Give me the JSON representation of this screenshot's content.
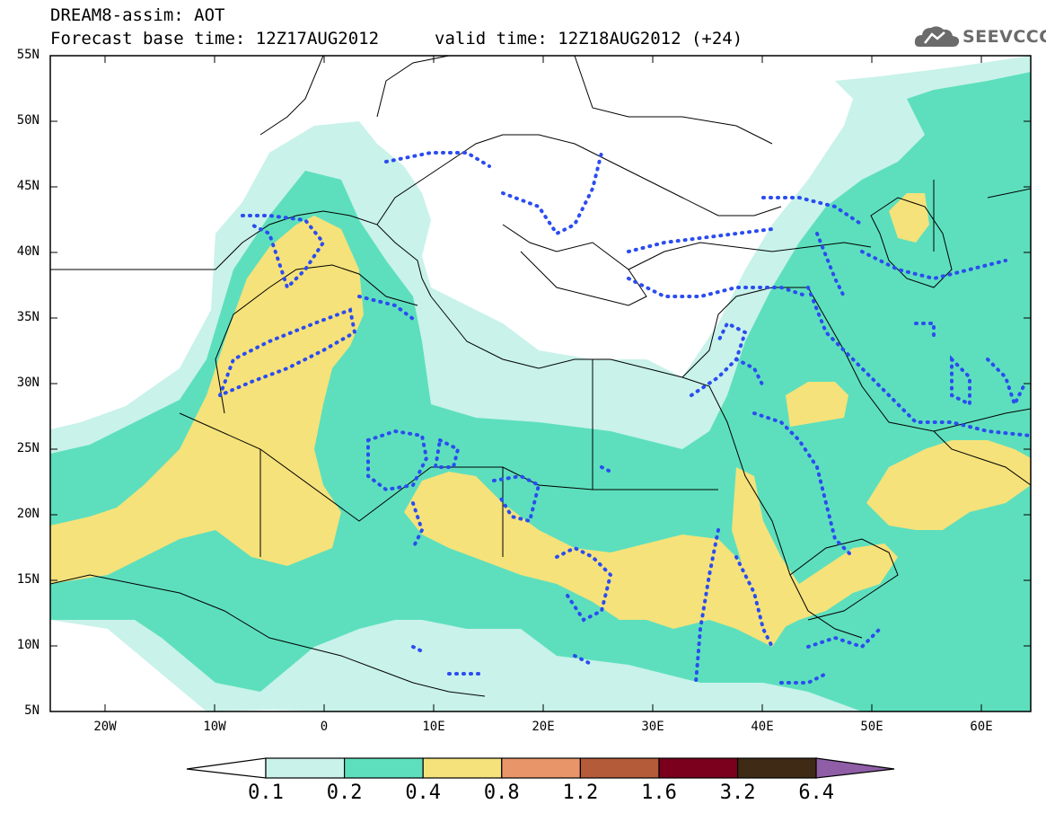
{
  "header": {
    "line1": "DREAM8-assim: AOT",
    "line2": "Forecast base time: 12Z17AUG2012",
    "valid": "valid time: 12Z18AUG2012 (+24)"
  },
  "logo": {
    "text": "SEEVCCC",
    "icon": "cloud-icon"
  },
  "axes": {
    "lat_labels": [
      "55N",
      "50N",
      "45N",
      "40N",
      "35N",
      "30N",
      "25N",
      "20N",
      "15N",
      "10N",
      "5N"
    ],
    "lon_labels": [
      "20W",
      "10W",
      "0",
      "10E",
      "20E",
      "30E",
      "40E",
      "50E",
      "60E"
    ]
  },
  "legend": {
    "labels": [
      "0.1",
      "0.2",
      "0.4",
      "0.8",
      "1.2",
      "1.6",
      "3.2",
      "6.4"
    ],
    "colors": [
      "#ffffff",
      "#c8f2ea",
      "#5ddfbd",
      "#f5e27a",
      "#e9956a",
      "#b45b3a",
      "#7a001e",
      "#3e2a15",
      "#8f5ea6"
    ]
  }
}
